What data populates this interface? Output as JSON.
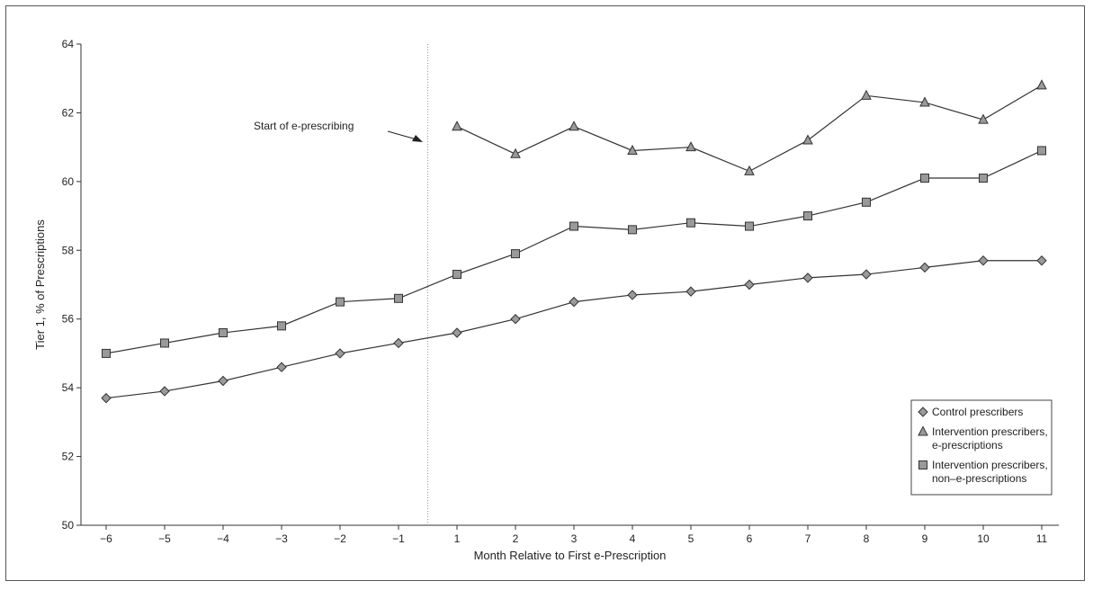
{
  "chart_data": {
    "type": "line",
    "title": "",
    "xlabel": "Month Relative to First e-Prescription",
    "ylabel": "Tier 1, % of Prescriptions",
    "categories": [
      "−6",
      "−5",
      "−4",
      "−3",
      "−2",
      "−1",
      "1",
      "2",
      "3",
      "4",
      "5",
      "6",
      "7",
      "8",
      "9",
      "10",
      "11"
    ],
    "ylim": [
      50,
      64
    ],
    "yticks": [
      "50",
      "52",
      "54",
      "56",
      "58",
      "60",
      "62",
      "64"
    ],
    "grid": false,
    "legend_position": "bottom-right",
    "annotation": "Start of e-prescribing",
    "series": [
      {
        "name": "Control prescribers",
        "marker": "diamond",
        "x": [
          "−6",
          "−5",
          "−4",
          "−3",
          "−2",
          "−1",
          "1",
          "2",
          "3",
          "4",
          "5",
          "6",
          "7",
          "8",
          "9",
          "10",
          "11"
        ],
        "values": [
          53.7,
          53.9,
          54.2,
          54.6,
          55.0,
          55.3,
          55.6,
          56.0,
          56.5,
          56.7,
          56.8,
          57.0,
          57.2,
          57.3,
          57.5,
          57.7,
          57.7
        ]
      },
      {
        "name": "Intervention prescribers, e-prescriptions",
        "legend_lines": [
          "Intervention prescribers,",
          "e-prescriptions"
        ],
        "marker": "triangle",
        "x": [
          "1",
          "2",
          "3",
          "4",
          "5",
          "6",
          "7",
          "8",
          "9",
          "10",
          "11"
        ],
        "values": [
          61.6,
          60.8,
          61.6,
          60.9,
          61.0,
          60.3,
          61.2,
          62.5,
          62.3,
          61.8,
          62.8
        ]
      },
      {
        "name": "Intervention prescribers, non-e-prescriptions",
        "legend_lines": [
          "Intervention prescribers,",
          "non–e-prescriptions"
        ],
        "marker": "square",
        "x": [
          "−6",
          "−5",
          "−4",
          "−3",
          "−2",
          "−1",
          "1",
          "2",
          "3",
          "4",
          "5",
          "6",
          "7",
          "8",
          "9",
          "10",
          "11"
        ],
        "values": [
          55.0,
          55.3,
          55.6,
          55.8,
          56.5,
          56.6,
          57.3,
          57.9,
          58.7,
          58.6,
          58.8,
          58.7,
          59.0,
          59.4,
          60.1,
          60.1,
          60.9
        ]
      }
    ]
  }
}
